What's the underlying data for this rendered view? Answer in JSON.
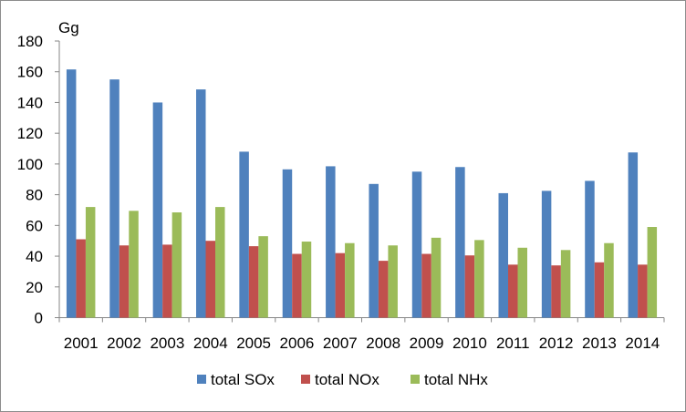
{
  "chart_data": {
    "type": "bar",
    "unit_label": "Gg",
    "categories": [
      "2001",
      "2002",
      "2003",
      "2004",
      "2005",
      "2006",
      "2007",
      "2008",
      "2009",
      "2010",
      "2011",
      "2012",
      "2013",
      "2014"
    ],
    "series": [
      {
        "name": "total SOx",
        "color": "#4f81bd",
        "values": [
          161.5,
          155,
          140,
          148.5,
          108,
          96.5,
          98.5,
          87,
          95,
          98,
          81,
          82.5,
          89,
          107.5
        ]
      },
      {
        "name": "total NOx",
        "color": "#c0504d",
        "values": [
          51,
          47,
          47.5,
          50,
          46.5,
          41.5,
          42,
          37,
          41.5,
          40.5,
          34.5,
          34,
          36,
          34.5
        ]
      },
      {
        "name": "total NHx",
        "color": "#9bbb59",
        "values": [
          72,
          69.5,
          68.5,
          72,
          53,
          49.5,
          48.5,
          47,
          52,
          50.5,
          45.5,
          44,
          48.5,
          59
        ]
      }
    ],
    "ylim": [
      0,
      180
    ],
    "yticks": [
      0,
      20,
      40,
      60,
      80,
      100,
      120,
      140,
      160,
      180
    ],
    "grid": false,
    "legend_position": "bottom"
  }
}
